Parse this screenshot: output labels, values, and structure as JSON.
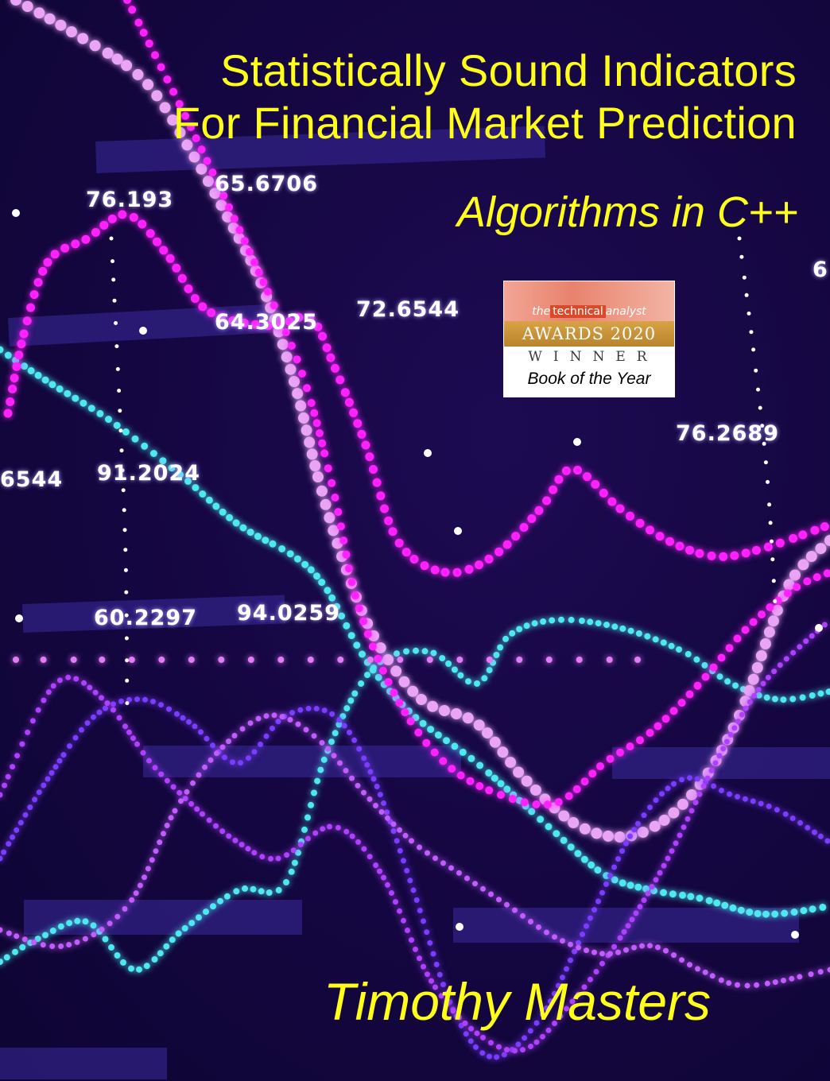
{
  "cover": {
    "title_line1": "Statistically Sound Indicators",
    "title_line2": "For Financial Market Prediction",
    "subtitle": "Algorithms in C++",
    "author": "Timothy Masters"
  },
  "badge": {
    "brand_prefix": "the",
    "brand_highlight": "technical",
    "brand_suffix": "analyst",
    "awards": "AWARDS 2020",
    "winner": "WINNER",
    "category": "Book of the Year"
  },
  "numbers": [
    "76.193",
    "65.6706",
    "64.3025",
    "72.6544",
    "76.2689",
    "6544",
    "91.2024",
    "60.2297",
    "94.0259",
    "6"
  ],
  "colors": {
    "background": "#14073d",
    "title_yellow": "#ffff1a",
    "cyan": "#4de8f0",
    "magenta": "#ff22ff",
    "pink": "#e9a4f5",
    "violet": "#7b3cff",
    "purple": "#b040ff"
  }
}
